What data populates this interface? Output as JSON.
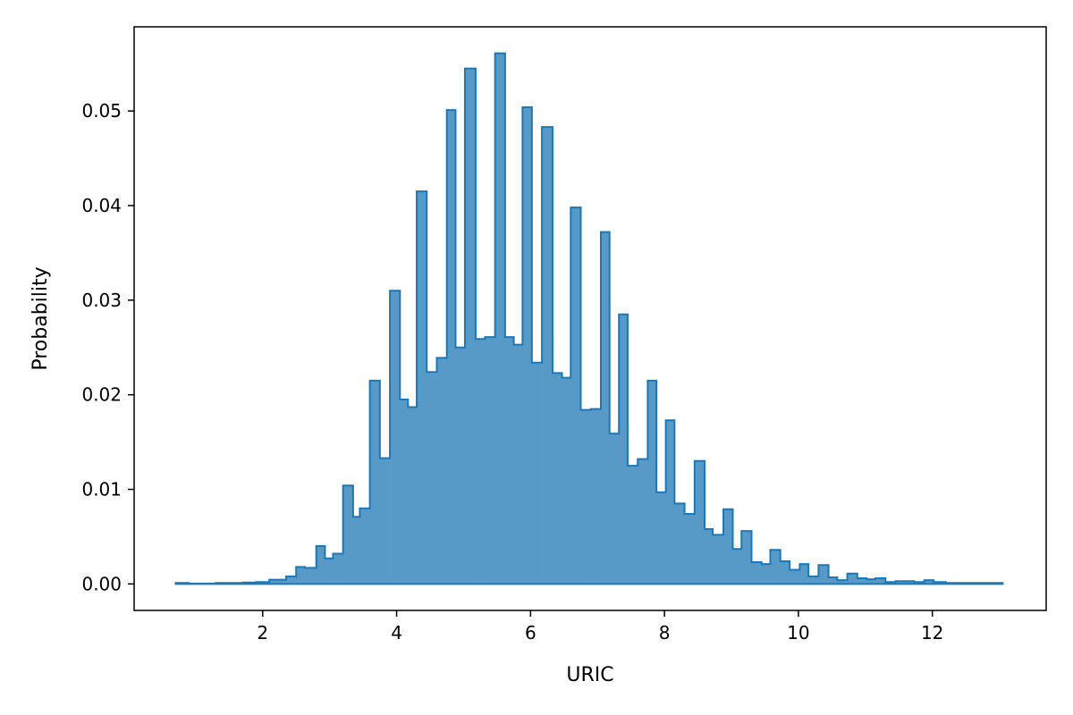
{
  "chart_data": {
    "type": "histogram",
    "title": "",
    "xlabel": "URIC",
    "ylabel": "Probability",
    "xlim": [
      0.08,
      13.7
    ],
    "ylim": [
      -0.0028,
      0.0589
    ],
    "grid": false,
    "legend": "none",
    "fill_color": "#5799c7",
    "edge_color": "#1f77b4",
    "x_ticks": [
      2,
      4,
      6,
      8,
      10,
      12
    ],
    "x_tick_labels": [
      "2",
      "4",
      "6",
      "8",
      "10",
      "12"
    ],
    "y_ticks": [
      0.0,
      0.01,
      0.02,
      0.03,
      0.04,
      0.05
    ],
    "y_tick_labels": [
      "0.00",
      "0.01",
      "0.02",
      "0.03",
      "0.04",
      "0.05"
    ],
    "bin_edges": [
      0.7,
      0.9,
      1.1,
      1.3,
      1.5,
      1.7,
      1.9,
      2.1,
      2.35,
      2.5,
      2.63,
      2.8,
      2.93,
      3.05,
      3.2,
      3.35,
      3.45,
      3.6,
      3.75,
      3.9,
      4.05,
      4.17,
      4.3,
      4.45,
      4.6,
      4.75,
      4.88,
      5.02,
      5.18,
      5.32,
      5.47,
      5.62,
      5.75,
      5.88,
      6.02,
      6.17,
      6.33,
      6.47,
      6.6,
      6.75,
      6.9,
      7.05,
      7.18,
      7.32,
      7.45,
      7.6,
      7.75,
      7.88,
      8.02,
      8.15,
      8.3,
      8.45,
      8.6,
      8.72,
      8.88,
      9.02,
      9.15,
      9.3,
      9.45,
      9.58,
      9.73,
      9.87,
      10.02,
      10.15,
      10.3,
      10.45,
      10.58,
      10.73,
      10.88,
      11.02,
      11.15,
      11.3,
      11.45,
      11.58,
      11.73,
      11.88,
      12.02,
      12.2,
      12.4,
      12.6,
      12.8,
      13.05
    ],
    "values": [
      0.0001,
      5e-05,
      5e-05,
      0.0001,
      0.0001,
      0.00015,
      0.0002,
      0.00045,
      0.0008,
      0.0018,
      0.0017,
      0.004,
      0.0027,
      0.0032,
      0.0104,
      0.0071,
      0.008,
      0.0215,
      0.0133,
      0.031,
      0.0195,
      0.0187,
      0.0415,
      0.0224,
      0.0239,
      0.0501,
      0.025,
      0.0545,
      0.0259,
      0.0261,
      0.0561,
      0.0261,
      0.0253,
      0.0504,
      0.0234,
      0.0483,
      0.0223,
      0.0218,
      0.0398,
      0.0184,
      0.0185,
      0.0372,
      0.0159,
      0.0285,
      0.0125,
      0.0132,
      0.0215,
      0.0097,
      0.0173,
      0.0085,
      0.0074,
      0.013,
      0.0058,
      0.0052,
      0.0079,
      0.0037,
      0.0056,
      0.0023,
      0.0021,
      0.0036,
      0.0024,
      0.0015,
      0.0021,
      0.0008,
      0.002,
      0.0007,
      0.0004,
      0.0011,
      0.0006,
      0.0005,
      0.0006,
      0.0002,
      0.0003,
      0.0003,
      0.0002,
      0.0004,
      0.0002,
      0.0001,
      0.0001,
      0.0001,
      0.0001
    ]
  }
}
